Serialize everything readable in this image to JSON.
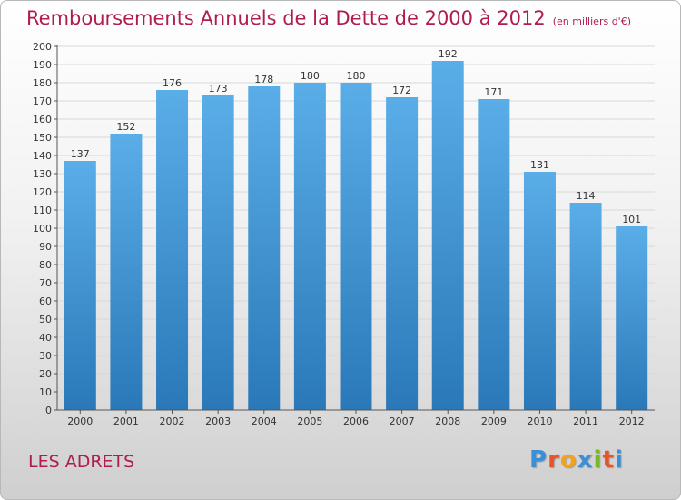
{
  "header": {
    "title": "Remboursements Annuels de la Dette de 2000 à 2012",
    "subtitle": "(en milliers d'€)"
  },
  "footer": {
    "place": "LES ADRETS",
    "logo_letters": [
      "P",
      "r",
      "o",
      "x",
      "i",
      "t",
      "i"
    ],
    "logo_colors": [
      "#3a8fd8",
      "#e8532a",
      "#f2a21c",
      "#3a8fd8",
      "#79b82c",
      "#e8532a",
      "#3a8fd8"
    ]
  },
  "chart_data": {
    "type": "bar",
    "categories": [
      "2000",
      "2001",
      "2002",
      "2003",
      "2004",
      "2005",
      "2006",
      "2007",
      "2008",
      "2009",
      "2010",
      "2011",
      "2012"
    ],
    "values": [
      137,
      152,
      176,
      173,
      178,
      180,
      180,
      172,
      192,
      171,
      131,
      114,
      101
    ],
    "title": "Remboursements Annuels de la Dette de 2000 à 2012",
    "xlabel": "",
    "ylabel": "",
    "ylim": [
      0,
      200
    ],
    "ytick_step": 10,
    "grid": true,
    "bar_color_top": "#5aaee8",
    "bar_color_bottom": "#2a78b8"
  }
}
